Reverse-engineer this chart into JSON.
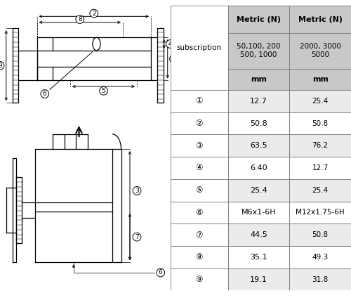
{
  "bg_color": "#ffffff",
  "table_header_row1": [
    "",
    "Metric (N)",
    "Metric (N)"
  ],
  "table_header_row2": [
    "subscription",
    "50,100, 200\n500, 1000",
    "2000, 3000\n5000"
  ],
  "table_header_row3": [
    "",
    "mm",
    "mm"
  ],
  "table_rows": [
    [
      "①",
      "12.7",
      "25.4"
    ],
    [
      "②",
      "50.8",
      "50.8"
    ],
    [
      "③",
      "63.5",
      "76.2"
    ],
    [
      "④",
      "6.40",
      "12.7"
    ],
    [
      "⑤",
      "25.4",
      "25.4"
    ],
    [
      "⑥",
      "M6x1-6H",
      "M12x1.75-6H"
    ],
    [
      "⑦",
      "44.5",
      "50.8"
    ],
    [
      "⑧",
      "35.1",
      "49.3"
    ],
    [
      "⑨",
      "19.1",
      "31.8"
    ]
  ],
  "line_color": "#000000",
  "text_color": "#000000",
  "gray_color": "#c8c8c8"
}
